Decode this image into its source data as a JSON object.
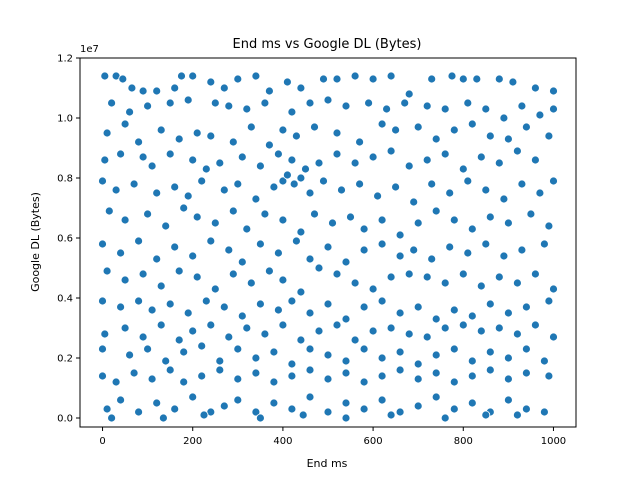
{
  "chart_data": {
    "type": "scatter",
    "title": "End ms vs Google DL (Bytes)",
    "xlabel": "End ms",
    "ylabel": "Google DL (Bytes)",
    "y_offset_label": "1e7",
    "xlim": [
      -50,
      1050
    ],
    "ylim": [
      -300000,
      12000000
    ],
    "x_ticks": [
      0,
      200,
      400,
      600,
      800,
      1000
    ],
    "x_tick_labels": [
      "0",
      "200",
      "400",
      "600",
      "800",
      "1000"
    ],
    "y_ticks": [
      0,
      2000000,
      4000000,
      6000000,
      8000000,
      10000000,
      12000000
    ],
    "y_tick_labels": [
      "0.0",
      "0.2",
      "0.4",
      "0.6",
      "0.8",
      "1.0",
      "1.2"
    ],
    "grid": false,
    "marker_color": "#1f77b4",
    "marker_edge": "#ffffff",
    "points": [
      [
        5,
        11400000
      ],
      [
        30,
        11400000
      ],
      [
        45,
        11300000
      ],
      [
        65,
        11000000
      ],
      [
        90,
        10900000
      ],
      [
        120,
        10900000
      ],
      [
        160,
        11000000
      ],
      [
        175,
        11400000
      ],
      [
        200,
        11400000
      ],
      [
        240,
        11200000
      ],
      [
        270,
        11000000
      ],
      [
        300,
        11300000
      ],
      [
        340,
        11400000
      ],
      [
        370,
        10900000
      ],
      [
        410,
        11200000
      ],
      [
        440,
        11000000
      ],
      [
        490,
        11300000
      ],
      [
        520,
        11300000
      ],
      [
        560,
        11400000
      ],
      [
        600,
        11300000
      ],
      [
        640,
        11400000
      ],
      [
        680,
        10800000
      ],
      [
        730,
        11300000
      ],
      [
        775,
        11400000
      ],
      [
        800,
        11300000
      ],
      [
        830,
        11300000
      ],
      [
        880,
        11300000
      ],
      [
        910,
        11200000
      ],
      [
        960,
        11000000
      ],
      [
        1000,
        10900000
      ],
      [
        20,
        10500000
      ],
      [
        60,
        10200000
      ],
      [
        100,
        10400000
      ],
      [
        150,
        10500000
      ],
      [
        190,
        10600000
      ],
      [
        250,
        10500000
      ],
      [
        280,
        10400000
      ],
      [
        320,
        10300000
      ],
      [
        360,
        10500000
      ],
      [
        420,
        10200000
      ],
      [
        460,
        10500000
      ],
      [
        500,
        10600000
      ],
      [
        540,
        10400000
      ],
      [
        590,
        10500000
      ],
      [
        630,
        10300000
      ],
      [
        670,
        10500000
      ],
      [
        720,
        10400000
      ],
      [
        760,
        10300000
      ],
      [
        810,
        10500000
      ],
      [
        850,
        10300000
      ],
      [
        890,
        10000000
      ],
      [
        930,
        10400000
      ],
      [
        970,
        10100000
      ],
      [
        1000,
        10300000
      ],
      [
        10,
        9500000
      ],
      [
        50,
        9800000
      ],
      [
        80,
        9200000
      ],
      [
        130,
        9600000
      ],
      [
        170,
        9300000
      ],
      [
        210,
        9500000
      ],
      [
        240,
        9400000
      ],
      [
        290,
        9200000
      ],
      [
        330,
        9700000
      ],
      [
        370,
        9100000
      ],
      [
        400,
        9600000
      ],
      [
        430,
        9400000
      ],
      [
        470,
        9700000
      ],
      [
        520,
        9500000
      ],
      [
        570,
        9200000
      ],
      [
        620,
        9800000
      ],
      [
        650,
        9600000
      ],
      [
        700,
        9700000
      ],
      [
        740,
        9300000
      ],
      [
        780,
        9600000
      ],
      [
        820,
        9800000
      ],
      [
        860,
        9400000
      ],
      [
        900,
        9300000
      ],
      [
        940,
        9700000
      ],
      [
        990,
        9400000
      ],
      [
        5,
        8600000
      ],
      [
        40,
        8800000
      ],
      [
        90,
        8700000
      ],
      [
        110,
        8400000
      ],
      [
        150,
        8800000
      ],
      [
        200,
        8600000
      ],
      [
        230,
        8300000
      ],
      [
        260,
        8500000
      ],
      [
        310,
        8700000
      ],
      [
        350,
        8400000
      ],
      [
        390,
        8800000
      ],
      [
        420,
        8600000
      ],
      [
        450,
        8300000
      ],
      [
        480,
        8500000
      ],
      [
        520,
        8800000
      ],
      [
        560,
        8500000
      ],
      [
        600,
        8700000
      ],
      [
        640,
        8900000
      ],
      [
        680,
        8400000
      ],
      [
        720,
        8600000
      ],
      [
        760,
        8800000
      ],
      [
        800,
        8300000
      ],
      [
        840,
        8700000
      ],
      [
        880,
        8500000
      ],
      [
        920,
        8900000
      ],
      [
        960,
        8600000
      ],
      [
        0,
        7900000
      ],
      [
        30,
        7600000
      ],
      [
        70,
        7800000
      ],
      [
        120,
        7500000
      ],
      [
        160,
        7700000
      ],
      [
        190,
        7400000
      ],
      [
        220,
        7900000
      ],
      [
        270,
        7600000
      ],
      [
        300,
        7800000
      ],
      [
        340,
        7300000
      ],
      [
        380,
        7700000
      ],
      [
        400,
        7900000
      ],
      [
        410,
        8100000
      ],
      [
        425,
        7800000
      ],
      [
        440,
        8000000
      ],
      [
        460,
        7500000
      ],
      [
        490,
        7900000
      ],
      [
        530,
        7600000
      ],
      [
        570,
        7800000
      ],
      [
        610,
        7400000
      ],
      [
        650,
        7700000
      ],
      [
        690,
        7200000
      ],
      [
        730,
        7800000
      ],
      [
        770,
        7500000
      ],
      [
        810,
        7900000
      ],
      [
        850,
        7600000
      ],
      [
        890,
        7300000
      ],
      [
        930,
        7800000
      ],
      [
        970,
        7500000
      ],
      [
        1000,
        7900000
      ],
      [
        15,
        6900000
      ],
      [
        50,
        6600000
      ],
      [
        100,
        6800000
      ],
      [
        140,
        6400000
      ],
      [
        180,
        7000000
      ],
      [
        210,
        6700000
      ],
      [
        250,
        6500000
      ],
      [
        290,
        6900000
      ],
      [
        320,
        6300000
      ],
      [
        360,
        6800000
      ],
      [
        400,
        6600000
      ],
      [
        440,
        6200000
      ],
      [
        470,
        6800000
      ],
      [
        510,
        6500000
      ],
      [
        550,
        6700000
      ],
      [
        580,
        6300000
      ],
      [
        620,
        6600000
      ],
      [
        660,
        6100000
      ],
      [
        700,
        6500000
      ],
      [
        740,
        6900000
      ],
      [
        780,
        6600000
      ],
      [
        820,
        6300000
      ],
      [
        860,
        6700000
      ],
      [
        900,
        6500000
      ],
      [
        950,
        6800000
      ],
      [
        990,
        6400000
      ],
      [
        0,
        5800000
      ],
      [
        40,
        5500000
      ],
      [
        80,
        5900000
      ],
      [
        120,
        5300000
      ],
      [
        160,
        5700000
      ],
      [
        200,
        5400000
      ],
      [
        240,
        5900000
      ],
      [
        280,
        5600000
      ],
      [
        310,
        5200000
      ],
      [
        350,
        5800000
      ],
      [
        390,
        5500000
      ],
      [
        430,
        5900000
      ],
      [
        460,
        5300000
      ],
      [
        500,
        5700000
      ],
      [
        540,
        5200000
      ],
      [
        580,
        5600000
      ],
      [
        620,
        5800000
      ],
      [
        660,
        5400000
      ],
      [
        690,
        5600000
      ],
      [
        730,
        5300000
      ],
      [
        770,
        5700000
      ],
      [
        810,
        5500000
      ],
      [
        850,
        5800000
      ],
      [
        890,
        5400000
      ],
      [
        930,
        5600000
      ],
      [
        980,
        5800000
      ],
      [
        10,
        4900000
      ],
      [
        50,
        4600000
      ],
      [
        90,
        4800000
      ],
      [
        130,
        4400000
      ],
      [
        170,
        4900000
      ],
      [
        210,
        4700000
      ],
      [
        250,
        4300000
      ],
      [
        290,
        4800000
      ],
      [
        330,
        4500000
      ],
      [
        370,
        4900000
      ],
      [
        400,
        4600000
      ],
      [
        440,
        4200000
      ],
      [
        480,
        5000000
      ],
      [
        520,
        4800000
      ],
      [
        560,
        4500000
      ],
      [
        600,
        4300000
      ],
      [
        640,
        4700000
      ],
      [
        680,
        4800000
      ],
      [
        720,
        4700000
      ],
      [
        760,
        4500000
      ],
      [
        800,
        4800000
      ],
      [
        840,
        4400000
      ],
      [
        880,
        4700000
      ],
      [
        920,
        4500000
      ],
      [
        960,
        4800000
      ],
      [
        1000,
        4300000
      ],
      [
        0,
        3900000
      ],
      [
        40,
        3700000
      ],
      [
        80,
        3900000
      ],
      [
        110,
        3600000
      ],
      [
        150,
        3800000
      ],
      [
        190,
        3500000
      ],
      [
        230,
        3900000
      ],
      [
        270,
        3700000
      ],
      [
        310,
        3400000
      ],
      [
        350,
        3800000
      ],
      [
        390,
        3600000
      ],
      [
        420,
        3900000
      ],
      [
        460,
        3500000
      ],
      [
        500,
        3800000
      ],
      [
        540,
        3300000
      ],
      [
        580,
        3700000
      ],
      [
        620,
        3900000
      ],
      [
        660,
        3500000
      ],
      [
        700,
        3700000
      ],
      [
        740,
        3300000
      ],
      [
        780,
        3600000
      ],
      [
        820,
        3400000
      ],
      [
        860,
        3800000
      ],
      [
        900,
        3500000
      ],
      [
        940,
        3700000
      ],
      [
        990,
        3900000
      ],
      [
        5,
        2800000
      ],
      [
        50,
        3000000
      ],
      [
        90,
        2700000
      ],
      [
        130,
        3100000
      ],
      [
        170,
        2600000
      ],
      [
        200,
        2900000
      ],
      [
        240,
        3100000
      ],
      [
        280,
        2700000
      ],
      [
        320,
        3000000
      ],
      [
        360,
        2800000
      ],
      [
        400,
        3100000
      ],
      [
        440,
        2600000
      ],
      [
        480,
        2900000
      ],
      [
        520,
        3100000
      ],
      [
        560,
        2600000
      ],
      [
        600,
        2900000
      ],
      [
        640,
        3000000
      ],
      [
        680,
        2800000
      ],
      [
        720,
        2700000
      ],
      [
        760,
        3000000
      ],
      [
        800,
        3100000
      ],
      [
        840,
        2900000
      ],
      [
        880,
        3000000
      ],
      [
        920,
        2800000
      ],
      [
        960,
        3100000
      ],
      [
        1000,
        2700000
      ],
      [
        0,
        2300000
      ],
      [
        60,
        2100000
      ],
      [
        100,
        2300000
      ],
      [
        140,
        1900000
      ],
      [
        180,
        2200000
      ],
      [
        220,
        2400000
      ],
      [
        260,
        1900000
      ],
      [
        300,
        2300000
      ],
      [
        340,
        2000000
      ],
      [
        380,
        2200000
      ],
      [
        420,
        1800000
      ],
      [
        460,
        2300000
      ],
      [
        500,
        2100000
      ],
      [
        540,
        1900000
      ],
      [
        580,
        2300000
      ],
      [
        620,
        2000000
      ],
      [
        660,
        2200000
      ],
      [
        700,
        1800000
      ],
      [
        740,
        2100000
      ],
      [
        780,
        2300000
      ],
      [
        820,
        1900000
      ],
      [
        860,
        2200000
      ],
      [
        900,
        2000000
      ],
      [
        940,
        2300000
      ],
      [
        980,
        1900000
      ],
      [
        0,
        1400000
      ],
      [
        30,
        1200000
      ],
      [
        70,
        1500000
      ],
      [
        110,
        1300000
      ],
      [
        150,
        1600000
      ],
      [
        180,
        1200000
      ],
      [
        220,
        1400000
      ],
      [
        260,
        1600000
      ],
      [
        300,
        1300000
      ],
      [
        340,
        1500000
      ],
      [
        380,
        1200000
      ],
      [
        420,
        1400000
      ],
      [
        460,
        1600000
      ],
      [
        500,
        1300000
      ],
      [
        540,
        1500000
      ],
      [
        580,
        1200000
      ],
      [
        620,
        1400000
      ],
      [
        660,
        1600000
      ],
      [
        700,
        1300000
      ],
      [
        740,
        1500000
      ],
      [
        780,
        1200000
      ],
      [
        820,
        1400000
      ],
      [
        860,
        1600000
      ],
      [
        900,
        1300000
      ],
      [
        940,
        1500000
      ],
      [
        990,
        1400000
      ],
      [
        10,
        300000
      ],
      [
        40,
        600000
      ],
      [
        80,
        200000
      ],
      [
        120,
        500000
      ],
      [
        160,
        300000
      ],
      [
        200,
        700000
      ],
      [
        240,
        200000
      ],
      [
        270,
        400000
      ],
      [
        300,
        600000
      ],
      [
        340,
        200000
      ],
      [
        380,
        500000
      ],
      [
        420,
        300000
      ],
      [
        460,
        700000
      ],
      [
        500,
        200000
      ],
      [
        540,
        500000
      ],
      [
        580,
        300000
      ],
      [
        620,
        600000
      ],
      [
        660,
        200000
      ],
      [
        700,
        400000
      ],
      [
        740,
        700000
      ],
      [
        780,
        300000
      ],
      [
        820,
        500000
      ],
      [
        860,
        200000
      ],
      [
        900,
        600000
      ],
      [
        940,
        300000
      ],
      [
        980,
        200000
      ],
      [
        20,
        0
      ],
      [
        135,
        0
      ],
      [
        225,
        100000
      ],
      [
        350,
        0
      ],
      [
        445,
        100000
      ],
      [
        540,
        0
      ],
      [
        640,
        100000
      ],
      [
        760,
        0
      ],
      [
        850,
        100000
      ],
      [
        920,
        100000
      ]
    ]
  }
}
